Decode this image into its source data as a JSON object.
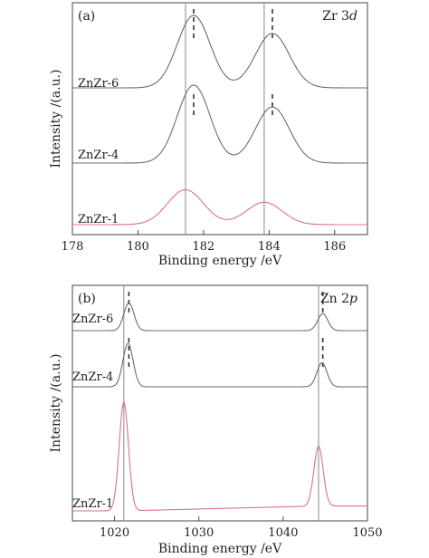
{
  "colors": {
    "gray_curve": "#6b6b6b",
    "pink_curve": "#e06c93",
    "blue_tint": "#6a7fd0",
    "teal_tint": "#4bbfa8",
    "reference_line": "#888888",
    "marker": "#333333",
    "axis": "#444444"
  },
  "chart_data": [
    {
      "type": "line",
      "panel_label": "(a)",
      "title": "Zr 3d",
      "title_main": "Zr 3",
      "title_orbital": "d",
      "xlabel": "Binding energy /eV",
      "ylabel": "Intensity /(a.u.)",
      "xlim": [
        178,
        187
      ],
      "xticks": [
        "178",
        "180",
        "182",
        "184",
        "186"
      ],
      "xtick_values": [
        178,
        180,
        182,
        184,
        186
      ],
      "y_axis_ticks": false,
      "legend": "none (curve labels at left of each trace)",
      "reference_lines_x": [
        181.45,
        183.85
      ],
      "marker_lines_x": [
        181.7,
        184.1
      ],
      "marker_applies_to": [
        "ZnZr-6",
        "ZnZr-4"
      ],
      "series": [
        {
          "name": "ZnZr-6",
          "color": "gray",
          "baseline_level": 0.0,
          "peaks": [
            {
              "center": 181.7,
              "height": 1.0,
              "width": 0.5
            },
            {
              "center": 184.1,
              "height": 0.75,
              "width": 0.52
            }
          ]
        },
        {
          "name": "ZnZr-4",
          "color": "gray",
          "baseline_level": 0.0,
          "peaks": [
            {
              "center": 181.7,
              "height": 1.0,
              "width": 0.5
            },
            {
              "center": 184.1,
              "height": 0.72,
              "width": 0.52
            }
          ]
        },
        {
          "name": "ZnZr-1",
          "color": "pink",
          "baseline_level": 0.0,
          "peaks": [
            {
              "center": 181.45,
              "height": 0.7,
              "width": 0.55
            },
            {
              "center": 183.85,
              "height": 0.45,
              "width": 0.55
            }
          ]
        }
      ]
    },
    {
      "type": "line",
      "panel_label": "(b)",
      "title": "Zn 2p",
      "title_main": "Zn 2",
      "title_orbital": "p",
      "xlabel": "Binding energy /eV",
      "ylabel": "Intensity /(a.u.)",
      "xlim": [
        1015,
        1050
      ],
      "xticks": [
        "1020",
        "1030",
        "1040",
        "1050"
      ],
      "xtick_values": [
        1020,
        1030,
        1040,
        1050
      ],
      "y_axis_ticks": false,
      "legend": "none (curve labels at left of each trace)",
      "reference_lines_x": [
        1021.1,
        1044.2
      ],
      "marker_lines_x": [
        1021.7,
        1044.7
      ],
      "marker_applies_to": [
        "ZnZr-6",
        "ZnZr-4"
      ],
      "series": [
        {
          "name": "ZnZr-6",
          "color": "gray",
          "baseline_slope": 0.0,
          "peaks": [
            {
              "center": 1021.7,
              "height": 0.9,
              "width": 0.6
            },
            {
              "center": 1044.7,
              "height": 0.55,
              "width": 0.6
            }
          ]
        },
        {
          "name": "ZnZr-4",
          "color": "gray",
          "baseline_slope": 0.0,
          "peaks": [
            {
              "center": 1021.6,
              "height": 1.0,
              "width": 0.6
            },
            {
              "center": 1044.6,
              "height": 0.55,
              "width": 0.6
            }
          ]
        },
        {
          "name": "ZnZr-1",
          "color": "pink",
          "baseline_slope": 0.25,
          "peaks": [
            {
              "center": 1021.1,
              "height": 1.0,
              "width": 0.55
            },
            {
              "center": 1044.2,
              "height": 0.55,
              "width": 0.55
            }
          ]
        }
      ]
    }
  ]
}
